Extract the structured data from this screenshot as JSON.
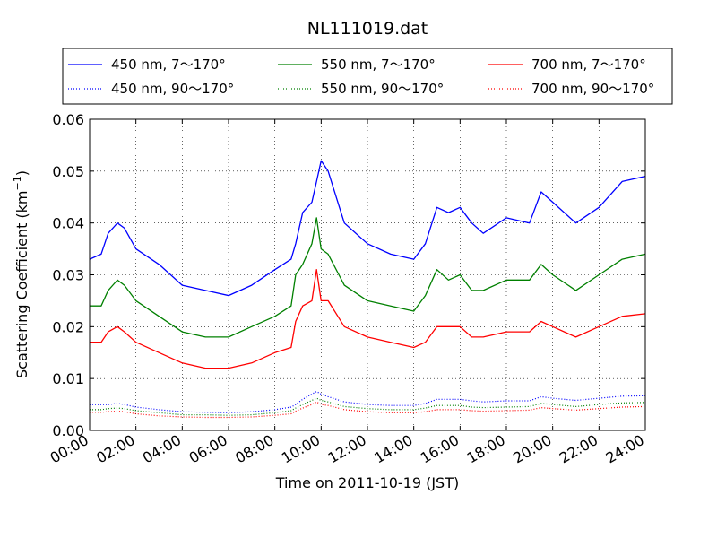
{
  "chart_data": {
    "type": "line",
    "title": "NL111019.dat",
    "xlabel": "Time on 2011-10-19 (JST)",
    "ylabel": "Scattering Coefficient (km",
    "ylabel_sup": "−1",
    "ylabel_end": ")",
    "xlim": [
      0,
      24
    ],
    "ylim": [
      0,
      0.06
    ],
    "x_ticks": [
      "00:00",
      "02:00",
      "04:00",
      "06:00",
      "08:00",
      "10:00",
      "12:00",
      "14:00",
      "16:00",
      "18:00",
      "20:00",
      "22:00",
      "24:00"
    ],
    "y_ticks": [
      "0.00",
      "0.01",
      "0.02",
      "0.03",
      "0.04",
      "0.05",
      "0.06"
    ],
    "grid": true,
    "legend_position": "top",
    "x_hours": [
      0,
      0.5,
      0.8,
      1.2,
      1.5,
      2,
      3,
      4,
      5,
      6,
      7,
      8,
      8.7,
      8.9,
      9.2,
      9.6,
      9.8,
      10,
      10.3,
      11,
      12,
      13,
      14,
      14.5,
      15,
      15.5,
      16,
      16.5,
      17,
      18,
      19,
      19.5,
      20,
      21,
      22,
      23,
      24
    ],
    "series": [
      {
        "name": "450 nm, 7～170°",
        "color": "#0000ff",
        "style": "solid",
        "values": [
          0.033,
          0.034,
          0.038,
          0.04,
          0.039,
          0.035,
          0.032,
          0.028,
          0.027,
          0.026,
          0.028,
          0.031,
          0.033,
          0.036,
          0.042,
          0.044,
          0.048,
          0.052,
          0.05,
          0.04,
          0.036,
          0.034,
          0.033,
          0.036,
          0.043,
          0.042,
          0.043,
          0.04,
          0.038,
          0.041,
          0.04,
          0.046,
          0.044,
          0.04,
          0.043,
          0.048,
          0.049
        ]
      },
      {
        "name": "450 nm, 90～170°",
        "color": "#0000ff",
        "style": "dotted",
        "values": [
          0.005,
          0.005,
          0.005,
          0.0052,
          0.005,
          0.0045,
          0.004,
          0.0036,
          0.0035,
          0.0034,
          0.0036,
          0.004,
          0.0045,
          0.005,
          0.006,
          0.007,
          0.0075,
          0.007,
          0.0065,
          0.0055,
          0.005,
          0.0048,
          0.0048,
          0.0052,
          0.006,
          0.006,
          0.006,
          0.0057,
          0.0055,
          0.0057,
          0.0057,
          0.0065,
          0.0062,
          0.0058,
          0.0062,
          0.0066,
          0.0067
        ]
      },
      {
        "name": "550 nm, 7～170°",
        "color": "#008000",
        "style": "solid",
        "values": [
          0.024,
          0.024,
          0.027,
          0.029,
          0.028,
          0.025,
          0.022,
          0.019,
          0.018,
          0.018,
          0.02,
          0.022,
          0.024,
          0.03,
          0.032,
          0.036,
          0.041,
          0.035,
          0.034,
          0.028,
          0.025,
          0.024,
          0.023,
          0.026,
          0.031,
          0.029,
          0.03,
          0.027,
          0.027,
          0.029,
          0.029,
          0.032,
          0.03,
          0.027,
          0.03,
          0.033,
          0.034
        ]
      },
      {
        "name": "550 nm, 90～170°",
        "color": "#008000",
        "style": "dotted",
        "values": [
          0.004,
          0.004,
          0.0042,
          0.0043,
          0.0042,
          0.0038,
          0.0034,
          0.003,
          0.003,
          0.0029,
          0.003,
          0.0034,
          0.0038,
          0.0043,
          0.005,
          0.0058,
          0.0062,
          0.0058,
          0.0055,
          0.0046,
          0.0042,
          0.004,
          0.004,
          0.0043,
          0.0048,
          0.0048,
          0.0048,
          0.0045,
          0.0044,
          0.0045,
          0.0046,
          0.0052,
          0.005,
          0.0046,
          0.005,
          0.0053,
          0.0054
        ]
      },
      {
        "name": "700 nm, 7～170°",
        "color": "#ff0000",
        "style": "solid",
        "values": [
          0.017,
          0.017,
          0.019,
          0.02,
          0.019,
          0.017,
          0.015,
          0.013,
          0.012,
          0.012,
          0.013,
          0.015,
          0.016,
          0.021,
          0.024,
          0.025,
          0.031,
          0.025,
          0.025,
          0.02,
          0.018,
          0.017,
          0.016,
          0.017,
          0.02,
          0.02,
          0.02,
          0.018,
          0.018,
          0.019,
          0.019,
          0.021,
          0.02,
          0.018,
          0.02,
          0.022,
          0.0225
        ]
      },
      {
        "name": "700 nm, 90～170°",
        "color": "#ff0000",
        "style": "dotted",
        "values": [
          0.0035,
          0.0035,
          0.0036,
          0.0037,
          0.0036,
          0.0032,
          0.0028,
          0.0026,
          0.0025,
          0.0025,
          0.0026,
          0.0029,
          0.0032,
          0.0037,
          0.0043,
          0.005,
          0.0055,
          0.005,
          0.0048,
          0.004,
          0.0036,
          0.0034,
          0.0034,
          0.0036,
          0.004,
          0.004,
          0.004,
          0.0038,
          0.0037,
          0.0038,
          0.0039,
          0.0044,
          0.0042,
          0.0039,
          0.0042,
          0.0045,
          0.0046
        ]
      }
    ]
  }
}
